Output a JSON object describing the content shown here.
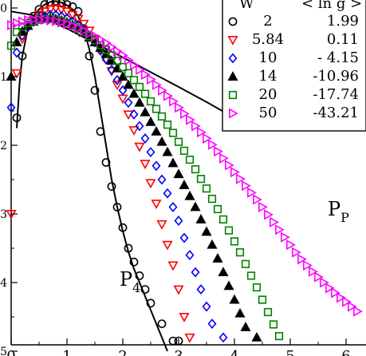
{
  "chart_data": {
    "type": "scatter",
    "title": "",
    "xlabel": "",
    "ylabel": "",
    "xlim": [
      0,
      6.3
    ],
    "ylim": [
      -5,
      0.2
    ],
    "x_tick_labels": [
      "0",
      "1",
      "2",
      "3",
      "4",
      "5",
      "6"
    ],
    "y_tick_labels": [
      "0",
      "1",
      "2",
      "3",
      "4",
      "5"
    ],
    "annotations": [
      {
        "text": "P",
        "sub": "4"
      },
      {
        "text": "P",
        "sub": "P"
      }
    ],
    "legend": {
      "placement": "top-right",
      "headers": [
        "W",
        "< ln g >"
      ],
      "entries": [
        {
          "w": "2",
          "mean": "1.99",
          "marker": "circle-open",
          "color": "#000000"
        },
        {
          "w": "5.84",
          "mean": "0.11",
          "marker": "triangle-down-open",
          "color": "#ff0000"
        },
        {
          "w": "10",
          "mean": "- 4.15",
          "marker": "diamond-open",
          "color": "#0000ff"
        },
        {
          "w": "14",
          "mean": "-10.96",
          "marker": "triangle-up-filled",
          "color": "#000000"
        },
        {
          "w": "20",
          "mean": "-17.74",
          "marker": "square-open",
          "color": "#008000"
        },
        {
          "w": "50",
          "mean": "-43.21",
          "marker": "triangle-right-open",
          "color": "#ff00ff"
        }
      ]
    },
    "series": [
      {
        "name": "2",
        "points": [
          [
            0.1,
            -1.6
          ],
          [
            0.2,
            -0.7
          ],
          [
            0.3,
            -0.25
          ],
          [
            0.4,
            -0.12
          ],
          [
            0.5,
            -0.02
          ],
          [
            0.6,
            0.05
          ],
          [
            0.7,
            0.08
          ],
          [
            0.8,
            0.09
          ],
          [
            0.9,
            0.07
          ],
          [
            1.0,
            0.05
          ],
          [
            1.1,
            0.02
          ],
          [
            1.2,
            -0.05
          ],
          [
            1.3,
            -0.3
          ],
          [
            1.4,
            -0.7
          ],
          [
            1.5,
            -1.2
          ],
          [
            1.6,
            -1.8
          ],
          [
            1.7,
            -2.25
          ],
          [
            1.8,
            -2.6
          ],
          [
            1.9,
            -2.9
          ],
          [
            2.0,
            -3.2
          ],
          [
            2.1,
            -3.5
          ],
          [
            2.2,
            -3.7
          ],
          [
            2.3,
            -3.9
          ],
          [
            2.4,
            -4.1
          ],
          [
            2.5,
            -4.3
          ],
          [
            2.7,
            -4.6
          ],
          [
            2.9,
            -4.85
          ],
          [
            3.0,
            -4.85
          ]
        ]
      },
      {
        "name": "5.84",
        "points": [
          [
            0,
            -3.0
          ],
          [
            0.1,
            -0.95
          ],
          [
            0.2,
            -0.45
          ],
          [
            0.3,
            -0.28
          ],
          [
            0.4,
            -0.18
          ],
          [
            0.5,
            -0.1
          ],
          [
            0.6,
            -0.05
          ],
          [
            0.7,
            -0.02
          ],
          [
            0.8,
            0.0
          ],
          [
            0.9,
            -0.02
          ],
          [
            1.0,
            -0.05
          ],
          [
            1.1,
            -0.1
          ],
          [
            1.2,
            -0.16
          ],
          [
            1.3,
            -0.23
          ],
          [
            1.4,
            -0.33
          ],
          [
            1.5,
            -0.45
          ],
          [
            1.6,
            -0.6
          ],
          [
            1.7,
            -0.75
          ],
          [
            1.8,
            -0.92
          ],
          [
            1.9,
            -1.12
          ],
          [
            2.0,
            -1.32
          ],
          [
            2.1,
            -1.55
          ],
          [
            2.2,
            -1.78
          ],
          [
            2.3,
            -2.02
          ],
          [
            2.4,
            -2.27
          ],
          [
            2.5,
            -2.55
          ],
          [
            2.6,
            -2.85
          ],
          [
            2.7,
            -3.15
          ],
          [
            2.8,
            -3.45
          ],
          [
            2.9,
            -3.75
          ],
          [
            3.0,
            -4.1
          ],
          [
            3.1,
            -4.5
          ],
          [
            3.2,
            -4.8
          ],
          [
            3.3,
            -5.0
          ],
          [
            3.5,
            -5.0
          ]
        ]
      },
      {
        "name": "10",
        "points": [
          [
            0,
            -1.45
          ],
          [
            0.1,
            -0.65
          ],
          [
            0.2,
            -0.4
          ],
          [
            0.3,
            -0.28
          ],
          [
            0.4,
            -0.2
          ],
          [
            0.5,
            -0.15
          ],
          [
            0.6,
            -0.12
          ],
          [
            0.7,
            -0.1
          ],
          [
            0.8,
            -0.1
          ],
          [
            0.9,
            -0.12
          ],
          [
            1.0,
            -0.15
          ],
          [
            1.1,
            -0.2
          ],
          [
            1.2,
            -0.25
          ],
          [
            1.3,
            -0.32
          ],
          [
            1.4,
            -0.4
          ],
          [
            1.5,
            -0.5
          ],
          [
            1.6,
            -0.62
          ],
          [
            1.7,
            -0.75
          ],
          [
            1.8,
            -0.9
          ],
          [
            1.9,
            -1.05
          ],
          [
            2.0,
            -1.2
          ],
          [
            2.1,
            -1.38
          ],
          [
            2.2,
            -1.55
          ],
          [
            2.3,
            -1.72
          ],
          [
            2.4,
            -1.9
          ],
          [
            2.5,
            -2.1
          ],
          [
            2.6,
            -2.3
          ],
          [
            2.7,
            -2.5
          ],
          [
            2.8,
            -2.7
          ],
          [
            2.9,
            -2.9
          ],
          [
            3.0,
            -3.1
          ],
          [
            3.1,
            -3.35
          ],
          [
            3.2,
            -3.6
          ],
          [
            3.3,
            -3.85
          ],
          [
            3.4,
            -4.1
          ],
          [
            3.5,
            -4.35
          ],
          [
            3.6,
            -4.6
          ],
          [
            3.8,
            -4.8
          ]
        ]
      },
      {
        "name": "14",
        "points": [
          [
            0,
            -1.0
          ],
          [
            0.1,
            -0.5
          ],
          [
            0.2,
            -0.34
          ],
          [
            0.3,
            -0.26
          ],
          [
            0.4,
            -0.2
          ],
          [
            0.5,
            -0.17
          ],
          [
            0.6,
            -0.15
          ],
          [
            0.7,
            -0.15
          ],
          [
            0.8,
            -0.16
          ],
          [
            0.9,
            -0.18
          ],
          [
            1.0,
            -0.21
          ],
          [
            1.1,
            -0.25
          ],
          [
            1.2,
            -0.3
          ],
          [
            1.3,
            -0.36
          ],
          [
            1.4,
            -0.43
          ],
          [
            1.5,
            -0.5
          ],
          [
            1.6,
            -0.58
          ],
          [
            1.7,
            -0.67
          ],
          [
            1.8,
            -0.77
          ],
          [
            1.9,
            -0.88
          ],
          [
            2.0,
            -1.0
          ],
          [
            2.1,
            -1.12
          ],
          [
            2.2,
            -1.25
          ],
          [
            2.3,
            -1.38
          ],
          [
            2.4,
            -1.52
          ],
          [
            2.5,
            -1.66
          ],
          [
            2.6,
            -1.8
          ],
          [
            2.7,
            -1.95
          ],
          [
            2.8,
            -2.1
          ],
          [
            2.9,
            -2.26
          ],
          [
            3.0,
            -2.42
          ],
          [
            3.1,
            -2.58
          ],
          [
            3.2,
            -2.74
          ],
          [
            3.3,
            -2.9
          ],
          [
            3.4,
            -3.08
          ],
          [
            3.5,
            -3.26
          ],
          [
            3.6,
            -3.45
          ],
          [
            3.7,
            -3.65
          ],
          [
            3.8,
            -3.85
          ],
          [
            3.9,
            -4.05
          ],
          [
            4.0,
            -4.25
          ],
          [
            4.1,
            -4.45
          ],
          [
            4.2,
            -4.65
          ],
          [
            4.4,
            -4.8
          ]
        ]
      },
      {
        "name": "20",
        "points": [
          [
            0,
            -0.55
          ],
          [
            0.1,
            -0.35
          ],
          [
            0.2,
            -0.27
          ],
          [
            0.3,
            -0.22
          ],
          [
            0.4,
            -0.19
          ],
          [
            0.5,
            -0.17
          ],
          [
            0.6,
            -0.16
          ],
          [
            0.7,
            -0.16
          ],
          [
            0.8,
            -0.17
          ],
          [
            0.9,
            -0.19
          ],
          [
            1.0,
            -0.22
          ],
          [
            1.1,
            -0.26
          ],
          [
            1.2,
            -0.3
          ],
          [
            1.3,
            -0.35
          ],
          [
            1.4,
            -0.41
          ],
          [
            1.5,
            -0.47
          ],
          [
            1.6,
            -0.54
          ],
          [
            1.7,
            -0.61
          ],
          [
            1.8,
            -0.69
          ],
          [
            1.9,
            -0.77
          ],
          [
            2.0,
            -0.86
          ],
          [
            2.1,
            -0.95
          ],
          [
            2.2,
            -1.05
          ],
          [
            2.3,
            -1.15
          ],
          [
            2.4,
            -1.25
          ],
          [
            2.5,
            -1.36
          ],
          [
            2.6,
            -1.47
          ],
          [
            2.7,
            -1.58
          ],
          [
            2.8,
            -1.7
          ],
          [
            2.9,
            -1.82
          ],
          [
            3.0,
            -1.95
          ],
          [
            3.1,
            -2.08
          ],
          [
            3.2,
            -2.21
          ],
          [
            3.3,
            -2.35
          ],
          [
            3.4,
            -2.49
          ],
          [
            3.5,
            -2.63
          ],
          [
            3.6,
            -2.78
          ],
          [
            3.7,
            -2.93
          ],
          [
            3.8,
            -3.08
          ],
          [
            3.9,
            -3.24
          ],
          [
            4.0,
            -3.4
          ],
          [
            4.1,
            -3.56
          ],
          [
            4.2,
            -3.73
          ],
          [
            4.3,
            -3.9
          ],
          [
            4.4,
            -4.07
          ],
          [
            4.5,
            -4.25
          ],
          [
            4.6,
            -4.43
          ],
          [
            4.7,
            -4.61
          ],
          [
            4.8,
            -4.78
          ],
          [
            5.0,
            -4.9
          ]
        ]
      },
      {
        "name": "50",
        "points": [
          [
            0,
            -0.25
          ],
          [
            0.1,
            -0.22
          ],
          [
            0.2,
            -0.2
          ],
          [
            0.3,
            -0.18
          ],
          [
            0.4,
            -0.17
          ],
          [
            0.5,
            -0.17
          ],
          [
            0.6,
            -0.17
          ],
          [
            0.7,
            -0.18
          ],
          [
            0.8,
            -0.19
          ],
          [
            0.9,
            -0.21
          ],
          [
            1.0,
            -0.23
          ],
          [
            1.1,
            -0.26
          ],
          [
            1.2,
            -0.29
          ],
          [
            1.3,
            -0.33
          ],
          [
            1.4,
            -0.37
          ],
          [
            1.5,
            -0.41
          ],
          [
            1.6,
            -0.46
          ],
          [
            1.7,
            -0.51
          ],
          [
            1.8,
            -0.57
          ],
          [
            1.9,
            -0.63
          ],
          [
            2.0,
            -0.69
          ],
          [
            2.1,
            -0.76
          ],
          [
            2.2,
            -0.83
          ],
          [
            2.3,
            -0.9
          ],
          [
            2.4,
            -0.97
          ],
          [
            2.5,
            -1.04
          ],
          [
            2.6,
            -1.12
          ],
          [
            2.7,
            -1.2
          ],
          [
            2.8,
            -1.28
          ],
          [
            2.9,
            -1.36
          ],
          [
            3.0,
            -1.45
          ],
          [
            3.1,
            -1.54
          ],
          [
            3.2,
            -1.63
          ],
          [
            3.3,
            -1.72
          ],
          [
            3.4,
            -1.81
          ],
          [
            3.5,
            -1.9
          ],
          [
            3.6,
            -1.99
          ],
          [
            3.7,
            -2.09
          ],
          [
            3.8,
            -2.19
          ],
          [
            3.9,
            -2.29
          ],
          [
            4.0,
            -2.39
          ],
          [
            4.1,
            -2.49
          ],
          [
            4.2,
            -2.59
          ],
          [
            4.3,
            -2.69
          ],
          [
            4.4,
            -2.79
          ],
          [
            4.5,
            -2.9
          ],
          [
            4.6,
            -3.01
          ],
          [
            4.7,
            -3.12
          ],
          [
            4.8,
            -3.23
          ],
          [
            4.9,
            -3.34
          ],
          [
            5.0,
            -3.45
          ],
          [
            5.1,
            -3.56
          ],
          [
            5.2,
            -3.66
          ],
          [
            5.3,
            -3.75
          ],
          [
            5.4,
            -3.84
          ],
          [
            5.5,
            -3.92
          ],
          [
            5.6,
            -4.0
          ],
          [
            5.7,
            -4.08
          ],
          [
            5.8,
            -4.15
          ],
          [
            5.9,
            -4.22
          ],
          [
            6.0,
            -4.28
          ],
          [
            6.1,
            -4.35
          ],
          [
            6.2,
            -4.42
          ]
        ]
      }
    ],
    "curves": [
      {
        "label": "P4",
        "points": [
          [
            0.1,
            -1.75
          ],
          [
            0.15,
            -1.1
          ],
          [
            0.2,
            -0.7
          ],
          [
            0.3,
            -0.3
          ],
          [
            0.4,
            -0.12
          ],
          [
            0.5,
            -0.02
          ],
          [
            0.6,
            0.05
          ],
          [
            0.7,
            0.09
          ],
          [
            0.8,
            0.1
          ],
          [
            0.9,
            0.08
          ],
          [
            1.0,
            0.04
          ],
          [
            1.1,
            -0.02
          ],
          [
            1.2,
            -0.12
          ],
          [
            1.3,
            -0.3
          ],
          [
            1.4,
            -0.6
          ],
          [
            1.5,
            -1.0
          ],
          [
            1.6,
            -1.5
          ],
          [
            1.7,
            -2.0
          ],
          [
            1.8,
            -2.5
          ],
          [
            1.9,
            -2.9
          ],
          [
            2.0,
            -3.25
          ],
          [
            2.1,
            -3.55
          ],
          [
            2.2,
            -3.8
          ],
          [
            2.3,
            -4.0
          ],
          [
            2.4,
            -4.2
          ],
          [
            2.5,
            -4.4
          ],
          [
            2.6,
            -4.6
          ],
          [
            2.7,
            -4.8
          ],
          [
            2.8,
            -5.0
          ]
        ]
      },
      {
        "label": "PP",
        "points": [
          [
            0,
            -0.05
          ],
          [
            0.5,
            -0.12
          ],
          [
            1.0,
            -0.3
          ],
          [
            2.0,
            -0.72
          ],
          [
            3.0,
            -1.15
          ],
          [
            3.5,
            -1.37
          ],
          [
            4.0,
            -1.6
          ]
        ]
      }
    ]
  }
}
